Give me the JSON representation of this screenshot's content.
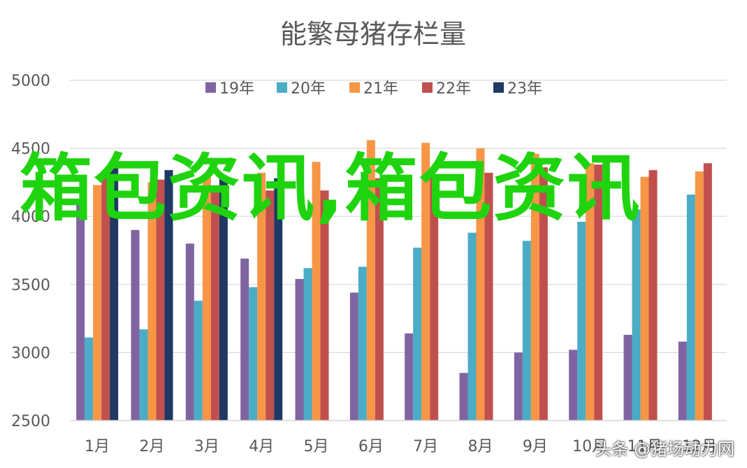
{
  "chart_data": {
    "type": "bar",
    "title": "能繁母猪存栏量",
    "categories": [
      "1月",
      "2月",
      "3月",
      "4月",
      "5月",
      "6月",
      "7月",
      "8月",
      "9月",
      "10月",
      "11月",
      "12月"
    ],
    "ylim": [
      2500,
      5000
    ],
    "yticks": [
      2500,
      3000,
      3500,
      4000,
      4500,
      5000
    ],
    "grid": true,
    "legend_position": "top",
    "series": [
      {
        "name": "19年",
        "color": "#8064a2",
        "values": [
          4110,
          3900,
          3800,
          3690,
          3540,
          3440,
          3140,
          2850,
          3000,
          3020,
          3130,
          3080
        ]
      },
      {
        "name": "20年",
        "color": "#4bacc6",
        "values": [
          3110,
          3170,
          3380,
          3480,
          3620,
          3630,
          3770,
          3880,
          3820,
          3960,
          4050,
          4160
        ]
      },
      {
        "name": "21年",
        "color": "#f79646",
        "values": [
          4230,
          4250,
          4310,
          4320,
          4400,
          4560,
          4540,
          4500,
          4460,
          4390,
          4290,
          4330
        ]
      },
      {
        "name": "22年",
        "color": "#c0504d",
        "values": [
          4290,
          4270,
          4200,
          4190,
          4190,
          4280,
          4290,
          4320,
          4360,
          4380,
          4340,
          4390
        ]
      },
      {
        "name": "23年",
        "color": "#1f3864",
        "values": [
          4370,
          4340,
          4300,
          4280,
          null,
          null,
          null,
          null,
          null,
          null,
          null,
          null
        ]
      }
    ]
  },
  "overlay": {
    "watermark_text": "箱包资讯,箱包资讯",
    "credit": "头条 @猪场动力网"
  }
}
